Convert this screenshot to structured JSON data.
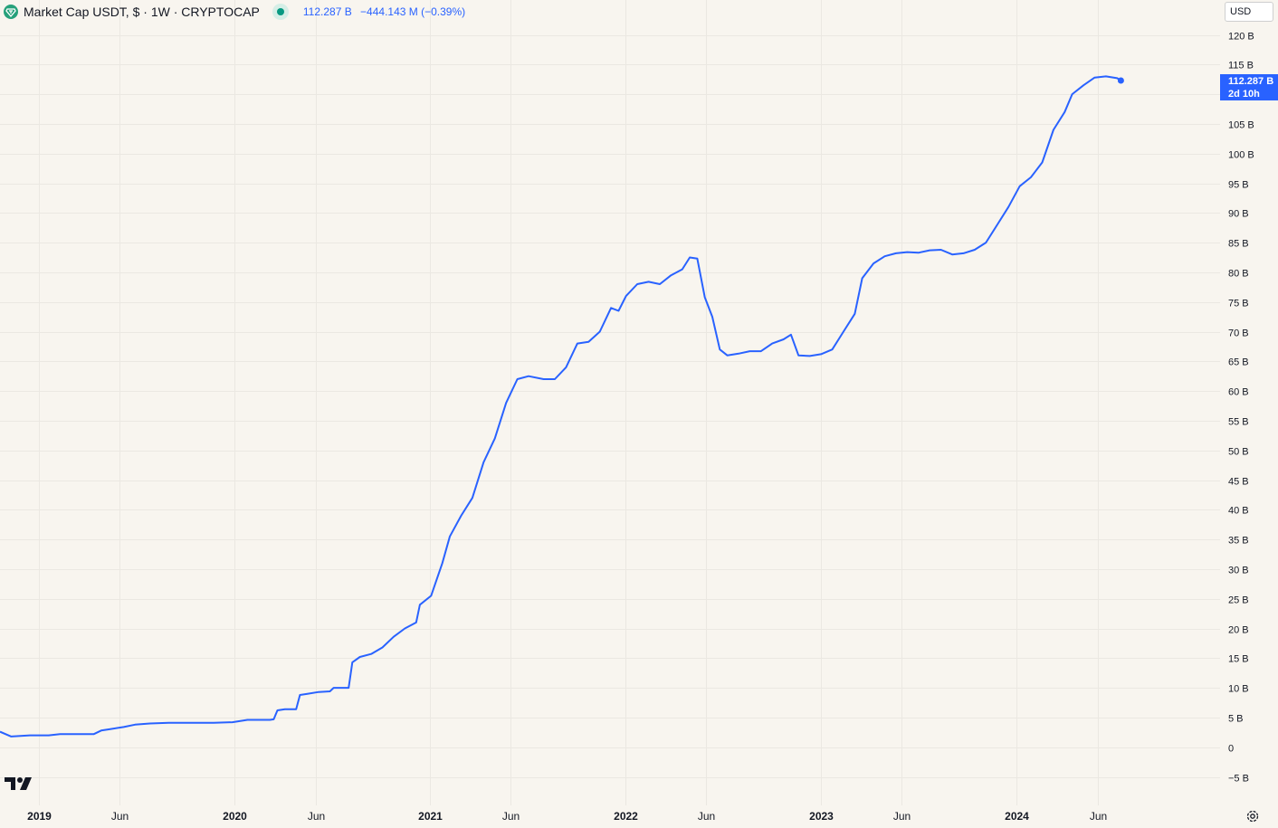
{
  "legend": {
    "title": "Market Cap USDT, $ · 1W · CRYPTOCAP",
    "last_value": "112.287 B",
    "change": "−444.143 M (−0.39%)"
  },
  "currency_button": "USD",
  "price_label": {
    "value": "112.287 B",
    "countdown": "2d 10h"
  },
  "icons": {
    "logo": "tether-logo-icon",
    "status": "market-status-dot-icon",
    "brand": "tradingview-logo-icon",
    "settings": "gear-icon"
  },
  "colors": {
    "line": "#2962ff",
    "background": "#f8f5ef",
    "grid": "#ebe8e2",
    "status": "#089981",
    "logo": "#26a17b"
  },
  "chart_data": {
    "type": "line",
    "title": "Market Cap USDT, $ · 1W · CRYPTOCAP",
    "xlabel": "",
    "ylabel": "",
    "ylim": [
      -5,
      120
    ],
    "xlim": [
      "2018-10-21",
      "2024-09-29"
    ],
    "grid": true,
    "y_ticks": [
      "−5 B",
      "0",
      "5 B",
      "10 B",
      "15 B",
      "20 B",
      "25 B",
      "30 B",
      "35 B",
      "40 B",
      "45 B",
      "50 B",
      "55 B",
      "60 B",
      "65 B",
      "70 B",
      "75 B",
      "80 B",
      "85 B",
      "90 B",
      "95 B",
      "100 B",
      "105 B",
      "110 B",
      "115 B",
      "120 B"
    ],
    "x_ticks": [
      {
        "label": "2019",
        "date": "2019-01-01"
      },
      {
        "label": "Jun",
        "date": "2019-06-01"
      },
      {
        "label": "2020",
        "date": "2020-01-01"
      },
      {
        "label": "Jun",
        "date": "2020-06-01"
      },
      {
        "label": "2021",
        "date": "2021-01-01"
      },
      {
        "label": "Jun",
        "date": "2021-06-01"
      },
      {
        "label": "2022",
        "date": "2022-01-01"
      },
      {
        "label": "Jun",
        "date": "2022-06-01"
      },
      {
        "label": "2023",
        "date": "2023-01-01"
      },
      {
        "label": "Jun",
        "date": "2023-06-01"
      },
      {
        "label": "2024",
        "date": "2024-01-01"
      },
      {
        "label": "Jun",
        "date": "2024-06-01"
      }
    ],
    "series": [
      {
        "values_unit": "B",
        "points": [
          [
            "2018-10-21",
            2.6
          ],
          [
            "2018-11-11",
            1.8
          ],
          [
            "2018-12-16",
            2.0
          ],
          [
            "2019-01-20",
            2.0
          ],
          [
            "2019-02-10",
            2.2
          ],
          [
            "2019-03-17",
            2.2
          ],
          [
            "2019-04-14",
            2.2
          ],
          [
            "2019-04-28",
            2.8
          ],
          [
            "2019-05-12",
            3.0
          ],
          [
            "2019-06-09",
            3.4
          ],
          [
            "2019-06-30",
            3.8
          ],
          [
            "2019-07-28",
            4.0
          ],
          [
            "2019-09-01",
            4.1
          ],
          [
            "2019-10-13",
            4.1
          ],
          [
            "2019-11-24",
            4.1
          ],
          [
            "2019-12-29",
            4.2
          ],
          [
            "2020-01-26",
            4.6
          ],
          [
            "2020-02-16",
            4.6
          ],
          [
            "2020-03-08",
            4.6
          ],
          [
            "2020-03-15",
            4.7
          ],
          [
            "2020-03-22",
            6.2
          ],
          [
            "2020-04-05",
            6.4
          ],
          [
            "2020-04-26",
            6.4
          ],
          [
            "2020-05-03",
            8.8
          ],
          [
            "2020-05-17",
            9.0
          ],
          [
            "2020-06-07",
            9.3
          ],
          [
            "2020-06-28",
            9.4
          ],
          [
            "2020-07-05",
            10.0
          ],
          [
            "2020-08-02",
            10.0
          ],
          [
            "2020-08-09",
            14.3
          ],
          [
            "2020-08-23",
            15.2
          ],
          [
            "2020-09-13",
            15.7
          ],
          [
            "2020-10-04",
            16.8
          ],
          [
            "2020-10-25",
            18.6
          ],
          [
            "2020-11-15",
            20.0
          ],
          [
            "2020-12-06",
            21.0
          ],
          [
            "2020-12-13",
            24.0
          ],
          [
            "2021-01-03",
            25.5
          ],
          [
            "2021-01-24",
            31.0
          ],
          [
            "2021-02-07",
            35.5
          ],
          [
            "2021-02-28",
            39.0
          ],
          [
            "2021-03-21",
            42.0
          ],
          [
            "2021-04-11",
            48.0
          ],
          [
            "2021-05-02",
            52.0
          ],
          [
            "2021-05-23",
            58.0
          ],
          [
            "2021-06-13",
            62.0
          ],
          [
            "2021-07-04",
            62.5
          ],
          [
            "2021-08-01",
            62.0
          ],
          [
            "2021-08-22",
            62.0
          ],
          [
            "2021-09-12",
            64.0
          ],
          [
            "2021-10-03",
            68.0
          ],
          [
            "2021-10-24",
            68.3
          ],
          [
            "2021-11-14",
            70.0
          ],
          [
            "2021-12-05",
            74.0
          ],
          [
            "2021-12-19",
            73.5
          ],
          [
            "2022-01-02",
            76.0
          ],
          [
            "2022-01-23",
            78.0
          ],
          [
            "2022-02-13",
            78.4
          ],
          [
            "2022-03-06",
            78.0
          ],
          [
            "2022-03-27",
            79.5
          ],
          [
            "2022-04-17",
            80.5
          ],
          [
            "2022-05-01",
            82.5
          ],
          [
            "2022-05-15",
            82.3
          ],
          [
            "2022-05-29",
            75.8
          ],
          [
            "2022-06-12",
            72.5
          ],
          [
            "2022-06-26",
            67.0
          ],
          [
            "2022-07-10",
            66.0
          ],
          [
            "2022-07-31",
            66.3
          ],
          [
            "2022-08-21",
            66.7
          ],
          [
            "2022-09-11",
            66.7
          ],
          [
            "2022-10-02",
            68.0
          ],
          [
            "2022-10-23",
            68.7
          ],
          [
            "2022-11-06",
            69.5
          ],
          [
            "2022-11-20",
            66.0
          ],
          [
            "2022-12-11",
            65.9
          ],
          [
            "2023-01-01",
            66.2
          ],
          [
            "2023-01-22",
            67.0
          ],
          [
            "2023-02-12",
            70.0
          ],
          [
            "2023-03-05",
            73.0
          ],
          [
            "2023-03-19",
            79.0
          ],
          [
            "2023-04-09",
            81.5
          ],
          [
            "2023-04-30",
            82.7
          ],
          [
            "2023-05-21",
            83.2
          ],
          [
            "2023-06-11",
            83.4
          ],
          [
            "2023-07-02",
            83.3
          ],
          [
            "2023-07-23",
            83.7
          ],
          [
            "2023-08-13",
            83.8
          ],
          [
            "2023-09-03",
            83.0
          ],
          [
            "2023-09-24",
            83.2
          ],
          [
            "2023-10-15",
            83.8
          ],
          [
            "2023-11-05",
            85.0
          ],
          [
            "2023-11-26",
            88.0
          ],
          [
            "2023-12-17",
            91.0
          ],
          [
            "2024-01-07",
            94.5
          ],
          [
            "2024-01-28",
            96.0
          ],
          [
            "2024-02-18",
            98.5
          ],
          [
            "2024-03-10",
            104.0
          ],
          [
            "2024-03-31",
            107.0
          ],
          [
            "2024-04-14",
            110.0
          ],
          [
            "2024-05-05",
            111.5
          ],
          [
            "2024-05-26",
            112.8
          ],
          [
            "2024-06-16",
            113.0
          ],
          [
            "2024-07-07",
            112.7
          ],
          [
            "2024-07-14",
            112.3
          ]
        ]
      }
    ]
  }
}
